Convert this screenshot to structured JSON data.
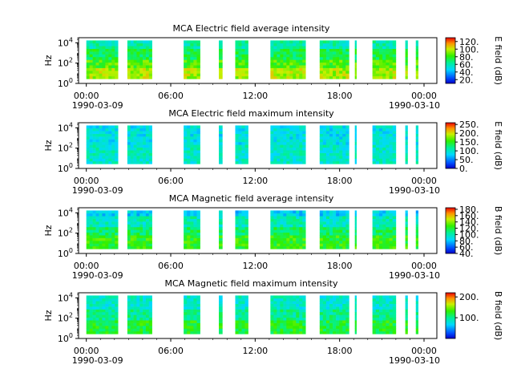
{
  "chart_data": [
    {
      "type": "heatmap",
      "title": "MCA  Electric field average intensity",
      "ylabel": "Hz",
      "colorbar_label": "E field (dB)",
      "colorbar_ticks": [
        "20.",
        "40.",
        "60.",
        "80.",
        "100.",
        "120."
      ],
      "clim": [
        10,
        130
      ],
      "y_ticks": [
        "10^0",
        "10^2",
        "10^4"
      ],
      "yscale": "log",
      "ylim_hz": [
        1,
        31623
      ],
      "x_ticks": [
        "00:00",
        "06:00",
        "12:00",
        "18:00",
        "00:00"
      ],
      "x_start": "1990-03-09",
      "x_end": "1990-03-10",
      "x_start_label": "1990-03-09",
      "x_end_label": "1990-03-10",
      "profile": "avg_e"
    },
    {
      "type": "heatmap",
      "title": "MCA  Electric field maximum intensity",
      "ylabel": "Hz",
      "colorbar_label": "E field (dB)",
      "colorbar_ticks": [
        "0.",
        "50.",
        "100.",
        "150.",
        "200.",
        "250."
      ],
      "clim": [
        0,
        260
      ],
      "y_ticks": [
        "10^0",
        "10^2",
        "10^4"
      ],
      "yscale": "log",
      "ylim_hz": [
        1,
        31623
      ],
      "x_ticks": [
        "00:00",
        "06:00",
        "12:00",
        "18:00",
        "00:00"
      ],
      "x_start": "1990-03-09",
      "x_end": "1990-03-10",
      "x_start_label": "1990-03-09",
      "x_end_label": "1990-03-10",
      "profile": "max_e"
    },
    {
      "type": "heatmap",
      "title": "MCA  Magnetic field average intensity",
      "ylabel": "Hz",
      "colorbar_label": "B field (dB)",
      "colorbar_ticks": [
        "40.",
        "60.",
        "80.",
        "100.",
        "120.",
        "140.",
        "160.",
        "180."
      ],
      "clim": [
        40,
        185
      ],
      "y_ticks": [
        "10^0",
        "10^2",
        "10^4"
      ],
      "yscale": "log",
      "ylim_hz": [
        1,
        31623
      ],
      "x_ticks": [
        "00:00",
        "06:00",
        "12:00",
        "18:00",
        "00:00"
      ],
      "x_start": "1990-03-09",
      "x_end": "1990-03-10",
      "x_start_label": "1990-03-09",
      "x_end_label": "1990-03-10",
      "profile": "avg_b"
    },
    {
      "type": "heatmap",
      "title": "MCA  Magnetic field maximum intensity",
      "ylabel": "Hz",
      "colorbar_label": "B field (dB)",
      "colorbar_ticks": [
        "100.",
        "200."
      ],
      "clim": [
        0,
        220
      ],
      "y_ticks": [
        "10^0",
        "10^2",
        "10^4"
      ],
      "yscale": "log",
      "ylim_hz": [
        1,
        31623
      ],
      "x_ticks": [
        "00:00",
        "06:00",
        "12:00",
        "18:00",
        "00:00"
      ],
      "x_start": "1990-03-09",
      "x_end": "1990-03-10",
      "x_start_label": "1990-03-09",
      "x_end_label": "1990-03-10",
      "profile": "max_b"
    }
  ],
  "data_segments": [
    [
      "1990-03-09T00:00",
      "1990-03-09T02:15"
    ],
    [
      "1990-03-09T02:55",
      "1990-03-09T04:40"
    ],
    [
      "1990-03-09T06:55",
      "1990-03-09T08:05"
    ],
    [
      "1990-03-09T09:25",
      "1990-03-09T09:40"
    ],
    [
      "1990-03-09T10:35",
      "1990-03-09T11:30"
    ],
    [
      "1990-03-09T13:05",
      "1990-03-09T15:35"
    ],
    [
      "1990-03-09T16:35",
      "1990-03-09T18:40"
    ],
    [
      "1990-03-09T19:05",
      "1990-03-09T19:10"
    ],
    [
      "1990-03-09T20:20",
      "1990-03-09T22:00"
    ],
    [
      "1990-03-09T22:40",
      "1990-03-09T22:50"
    ],
    [
      "1990-03-09T23:25",
      "1990-03-09T23:35"
    ]
  ]
}
